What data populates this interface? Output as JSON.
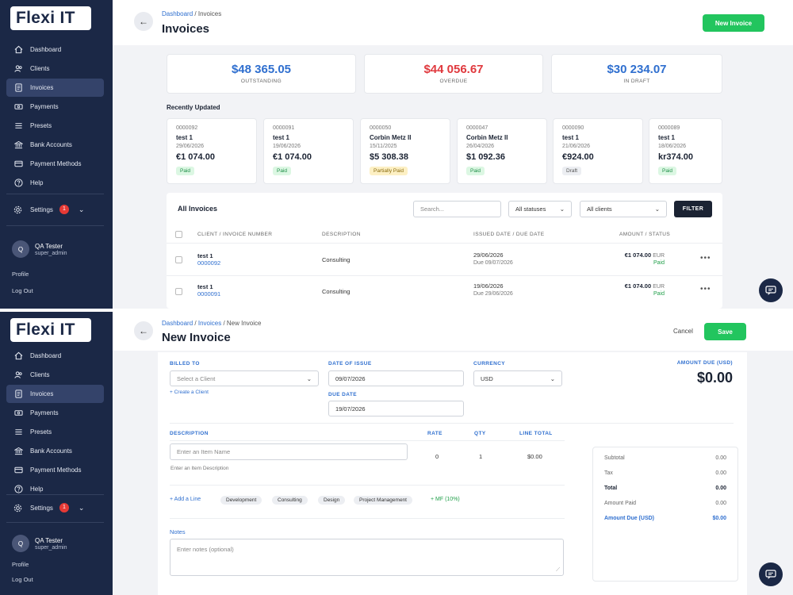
{
  "brand": {
    "name": "Flexi IT"
  },
  "sidebar": {
    "items": [
      {
        "label": "Dashboard",
        "icon": "home-icon"
      },
      {
        "label": "Clients",
        "icon": "users-icon"
      },
      {
        "label": "Invoices",
        "icon": "document-icon",
        "active": true
      },
      {
        "label": "Payments",
        "icon": "cash-icon"
      },
      {
        "label": "Presets",
        "icon": "list-icon"
      },
      {
        "label": "Bank Accounts",
        "icon": "bank-icon"
      },
      {
        "label": "Payment Methods",
        "icon": "card-icon"
      },
      {
        "label": "Help",
        "icon": "help-icon"
      }
    ],
    "settings_label": "Settings",
    "settings_badge": "1",
    "user": {
      "initial": "Q",
      "name": "QA Tester",
      "role": "super_admin"
    },
    "profile_link": "Profile",
    "logout_link": "Log Out"
  },
  "screen1": {
    "breadcrumb": {
      "home": "Dashboard",
      "sep": "/",
      "current": "Invoices"
    },
    "title": "Invoices",
    "new_invoice_button": "New Invoice",
    "stats": [
      {
        "value": "$48 365.05",
        "label": "OUTSTANDING",
        "color": "#2f6fcf"
      },
      {
        "value": "$44 056.67",
        "label": "OVERDUE",
        "color": "#e0393e"
      },
      {
        "value": "$30 234.07",
        "label": "IN DRAFT",
        "color": "#2f6fcf"
      }
    ],
    "recently_updated_title": "Recently Updated",
    "recent": [
      {
        "number": "0000092",
        "name": "test 1",
        "date": "29/06/2026",
        "amount": "€1 074.00",
        "status": "Paid",
        "status_type": "paid"
      },
      {
        "number": "0000091",
        "name": "test 1",
        "date": "19/06/2026",
        "amount": "€1 074.00",
        "status": "Paid",
        "status_type": "paid"
      },
      {
        "number": "0000050",
        "name": "Corbin Metz II",
        "date": "15/11/2025",
        "amount": "$5 308.38",
        "status": "Partially Paid",
        "status_type": "part"
      },
      {
        "number": "0000047",
        "name": "Corbin Metz II",
        "date": "26/04/2026",
        "amount": "$1 092.36",
        "status": "Paid",
        "status_type": "paid"
      },
      {
        "number": "0000090",
        "name": "test 1",
        "date": "21/06/2026",
        "amount": "€924.00",
        "status": "Draft",
        "status_type": "draft"
      },
      {
        "number": "0000089",
        "name": "test 1",
        "date": "18/06/2026",
        "amount": "kr374.00",
        "status": "Paid",
        "status_type": "paid"
      }
    ],
    "all_invoices_title": "All Invoices",
    "search_placeholder": "Search...",
    "status_filter": "All statuses",
    "client_filter": "All clients",
    "filter_button": "FILTER",
    "columns": [
      "CLIENT / INVOICE NUMBER",
      "DESCRIPTION",
      "ISSUED DATE / DUE DATE",
      "AMOUNT / STATUS"
    ],
    "rows": [
      {
        "client": "test 1",
        "number": "0000092",
        "description": "Consulting",
        "issued": "29/06/2026",
        "due": "Due 09/07/2026",
        "amount": "€1 074.00",
        "currency": "EUR",
        "status": "Paid"
      },
      {
        "client": "test 1",
        "number": "0000091",
        "description": "Consulting",
        "issued": "19/06/2026",
        "due": "Due 29/06/2026",
        "amount": "€1 074.00",
        "currency": "EUR",
        "status": "Paid"
      }
    ]
  },
  "screen2": {
    "breadcrumb": {
      "home": "Dashboard",
      "sep1": "/",
      "invoices": "Invoices",
      "sep2": "/",
      "current": "New Invoice"
    },
    "title": "New Invoice",
    "cancel_button": "Cancel",
    "save_button": "Save",
    "billed_to_label": "BILLED TO",
    "client_select": "Select a Client",
    "create_client_link": "+ Create a Client",
    "date_of_issue_label": "DATE OF ISSUE",
    "date_of_issue": "09/07/2026",
    "due_date_label": "DUE DATE",
    "due_date": "19/07/2026",
    "currency_label": "CURRENCY",
    "currency": "USD",
    "amount_due_label": "AMOUNT DUE (USD)",
    "amount_due": "$0.00",
    "line_columns": {
      "description": "DESCRIPTION",
      "rate": "RATE",
      "qty": "QTY",
      "total": "LINE TOTAL"
    },
    "item_placeholder": "Enter an Item Name",
    "item_description_hint": "Enter an Item Description",
    "line": {
      "rate": "0",
      "qty": "1",
      "total": "$0.00"
    },
    "add_line": "+ Add a Line",
    "presets": [
      "Development",
      "Consulting",
      "Design",
      "Project Management"
    ],
    "mf_link": "+ MF (10%)",
    "notes_label": "Notes",
    "notes_placeholder": "Enter notes (optional)",
    "totals": [
      {
        "label": "Subtotal",
        "value": "0.00"
      },
      {
        "label": "Tax",
        "value": "0.00"
      },
      {
        "label": "Total",
        "value": "0.00"
      },
      {
        "label": "Amount Paid",
        "value": "0.00"
      },
      {
        "label": "Amount Due (USD)",
        "value": "$0.00"
      }
    ]
  }
}
